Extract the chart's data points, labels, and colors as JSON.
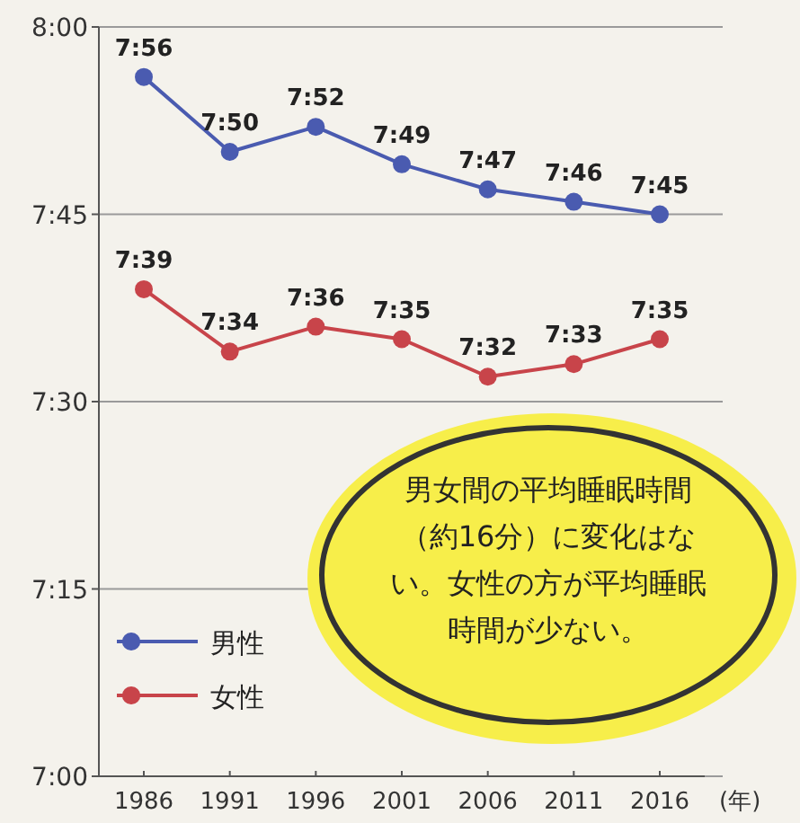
{
  "chart_data": {
    "type": "line",
    "xlabel": "(年)",
    "categories": [
      "1986",
      "1991",
      "1996",
      "2001",
      "2006",
      "2011",
      "2016"
    ],
    "series": [
      {
        "name": "男性",
        "color": "#4a5bb0",
        "values": [
          7.9333,
          7.8333,
          7.8667,
          7.8167,
          7.7833,
          7.7667,
          7.75
        ],
        "value_labels": [
          "7:56",
          "7:50",
          "7:52",
          "7:49",
          "7:47",
          "7:46",
          "7:45"
        ]
      },
      {
        "name": "女性",
        "color": "#c8444a",
        "values": [
          7.65,
          7.5667,
          7.6,
          7.5833,
          7.5333,
          7.55,
          7.5833
        ],
        "value_labels": [
          "7:39",
          "7:34",
          "7:36",
          "7:35",
          "7:32",
          "7:33",
          "7:35"
        ]
      }
    ],
    "ylim": [
      7,
      8
    ],
    "yticks": [
      {
        "value": 7,
        "label": "7:00"
      },
      {
        "value": 7.25,
        "label": "7:15"
      },
      {
        "value": 7.5,
        "label": "7:30"
      },
      {
        "value": 7.75,
        "label": "7:45"
      },
      {
        "value": 8,
        "label": "8:00"
      }
    ],
    "grid": "y",
    "legend": "bottom left",
    "marker": "circle",
    "line_style": "solid",
    "annotations": [
      "男女間の平均睡眠時間（約16分）に変化はない。女性の方が平均睡眠時間が少ない。"
    ]
  }
}
